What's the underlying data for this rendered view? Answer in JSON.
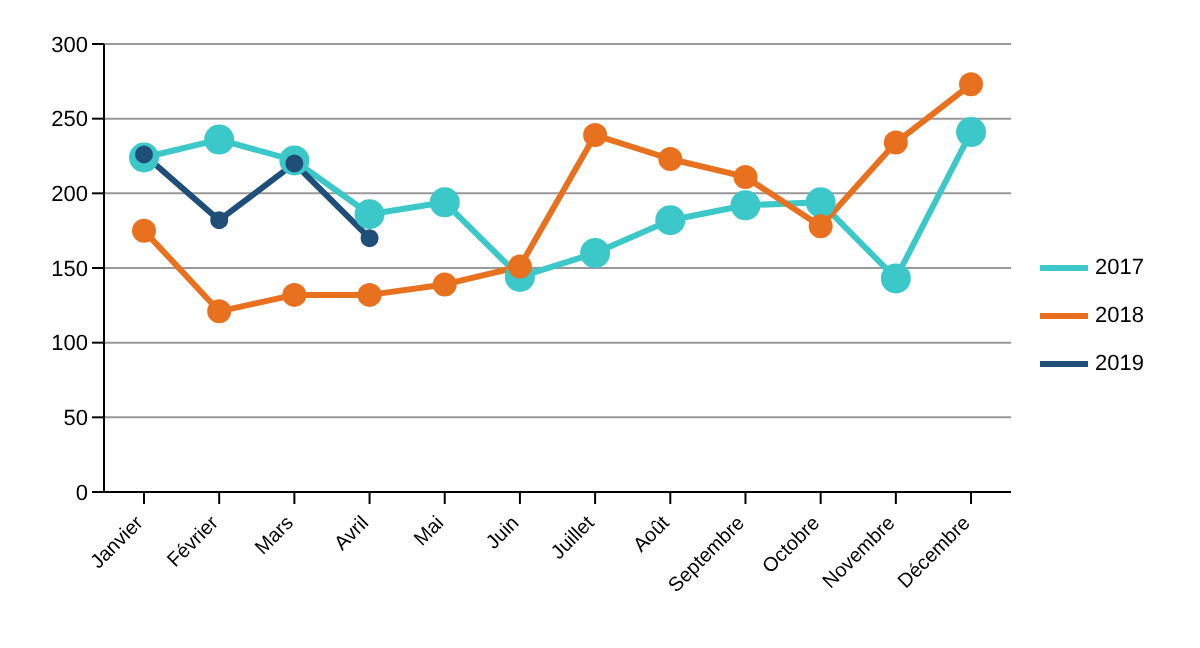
{
  "chart_data": {
    "type": "line",
    "categories": [
      "Janvier",
      "Février",
      "Mars",
      "Avril",
      "Mai",
      "Juin",
      "Juillet",
      "Août",
      "Septembre",
      "Octobre",
      "Novembre",
      "Décembre"
    ],
    "series": [
      {
        "name": "2017",
        "color": "#3cc8c8",
        "values": [
          224,
          236,
          222,
          186,
          194,
          144,
          160,
          182,
          192,
          194,
          143,
          241
        ]
      },
      {
        "name": "2018",
        "color": "#e8711f",
        "values": [
          175,
          121,
          132,
          132,
          139,
          151,
          239,
          223,
          211,
          178,
          234,
          273
        ]
      },
      {
        "name": "2019",
        "color": "#1f4e79",
        "values": [
          226,
          182,
          220,
          170,
          null,
          null,
          null,
          null,
          null,
          null,
          null,
          null
        ]
      }
    ],
    "ylim": [
      0,
      300
    ],
    "yticks": [
      0,
      50,
      100,
      150,
      200,
      250,
      300
    ],
    "grid": "y",
    "legend": "right",
    "marker": "circle",
    "line_style": "solid"
  }
}
